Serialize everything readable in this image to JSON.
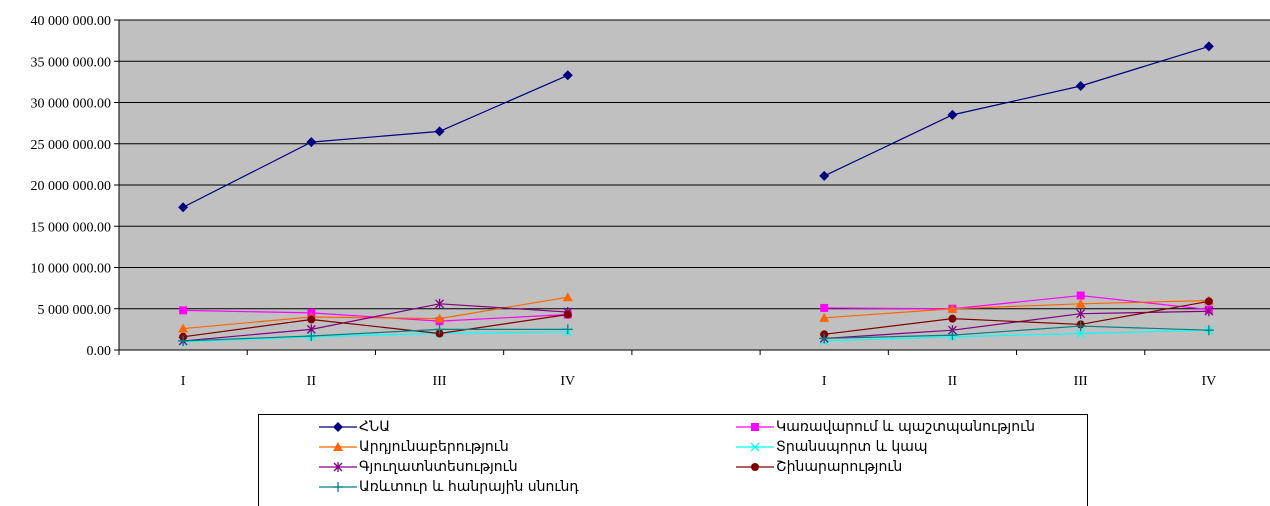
{
  "chart_data": {
    "type": "line",
    "categories": [
      "I",
      "II",
      "III",
      "IV",
      "",
      "I",
      "II",
      "III",
      "IV"
    ],
    "ylim": [
      0,
      40000000
    ],
    "yticks": [
      0,
      5000000,
      10000000,
      15000000,
      20000000,
      25000000,
      30000000,
      35000000,
      40000000
    ],
    "ytick_labels": [
      "0.00",
      "5 000 000.00",
      "10 000 000.00",
      "15 000 000.00",
      "20 000 000.00",
      "25 000 000.00",
      "30 000 000.00",
      "35 000 000.00",
      "40 000 000.00"
    ],
    "grid": true,
    "legend_position": "bottom",
    "series": [
      {
        "name": "ՀՆԱ",
        "color": "#000080",
        "marker": "diamond",
        "values": [
          17300000,
          25200000,
          26500000,
          33300000,
          null,
          21100000,
          28500000,
          32000000,
          36800000
        ]
      },
      {
        "name": "Կառավարում և պաշտպանություն",
        "color": "#ff00ff",
        "marker": "square",
        "values": [
          4800000,
          4500000,
          3500000,
          4300000,
          null,
          5100000,
          5000000,
          6600000,
          4900000
        ]
      },
      {
        "name": "Արդյունաբերություն",
        "color": "#ff6600",
        "marker": "triangle",
        "values": [
          2600000,
          4000000,
          3800000,
          6400000,
          null,
          3900000,
          5000000,
          5600000,
          6000000
        ]
      },
      {
        "name": "Տրանսպորտ և կապ",
        "color": "#00ffff",
        "marker": "x",
        "values": [
          1000000,
          1600000,
          2000000,
          2200000,
          null,
          1100000,
          1600000,
          2000000,
          2400000
        ]
      },
      {
        "name": "Գյուղատնտեսություն",
        "color": "#800080",
        "marker": "star",
        "values": [
          1100000,
          2500000,
          5600000,
          4600000,
          null,
          1400000,
          2400000,
          4400000,
          4700000
        ]
      },
      {
        "name": "Շինարարություն",
        "color": "#800000",
        "marker": "circle",
        "values": [
          1600000,
          3700000,
          2000000,
          4300000,
          null,
          1900000,
          3800000,
          3100000,
          5900000
        ]
      },
      {
        "name": "Առևտուր և հանրային սնունդ",
        "color": "#008080",
        "marker": "plus",
        "values": [
          1100000,
          1700000,
          2500000,
          2500000,
          null,
          1400000,
          1800000,
          2900000,
          2400000
        ]
      }
    ]
  }
}
